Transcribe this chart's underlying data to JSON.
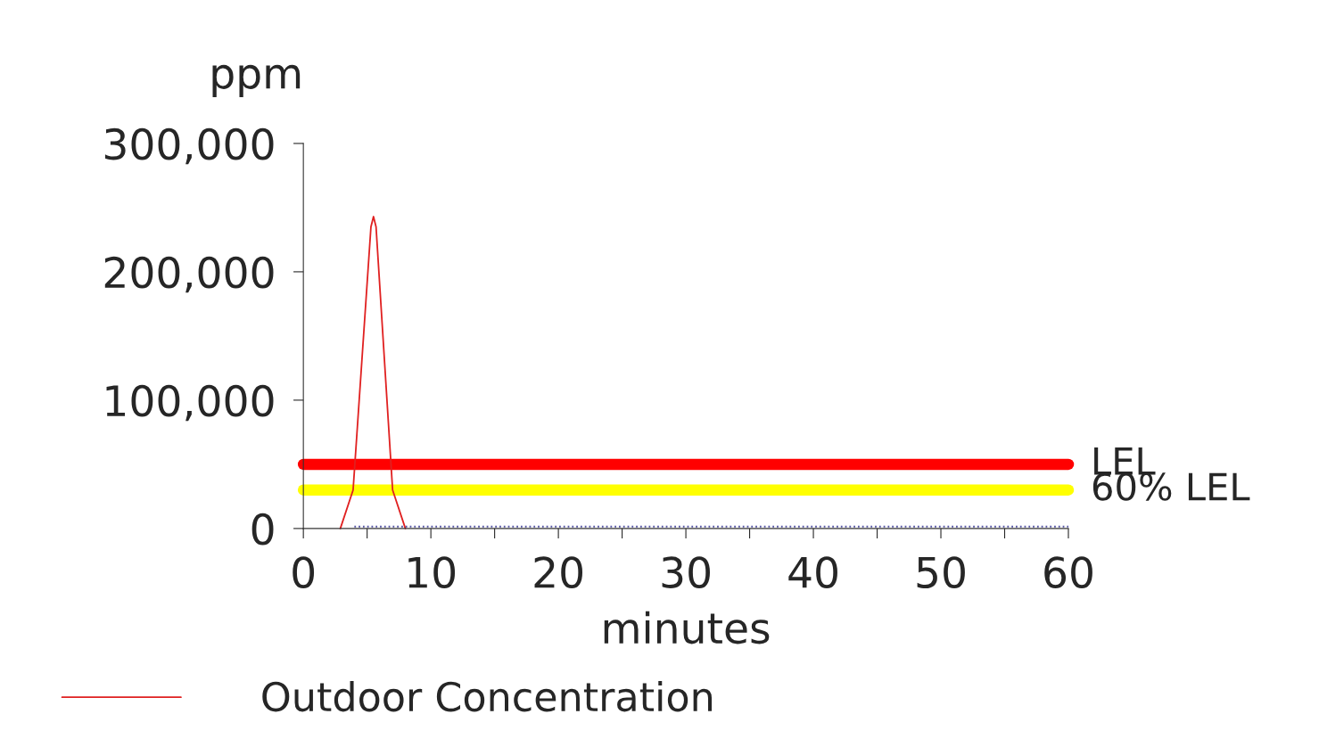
{
  "chart_data": {
    "type": "line",
    "xlabel": "minutes",
    "ylabel": "ppm",
    "series": [
      {
        "name": "Outdoor Concentration",
        "color": "#e02020",
        "x": [
          2.9,
          3.9,
          5.3,
          5.5,
          5.7,
          7.0,
          8.0
        ],
        "values": [
          0,
          30000,
          235000,
          243000,
          235000,
          30000,
          0
        ]
      },
      {
        "color": "#5050a0",
        "line_style": "dotted",
        "x": [
          4,
          60
        ],
        "values": [
          1500,
          1500
        ]
      }
    ],
    "ref_lines": [
      {
        "axis": "y",
        "value": 50000,
        "label": "LEL",
        "color": "#ff0000"
      },
      {
        "axis": "y",
        "value": 30000,
        "label": "60% LEL",
        "color": "#ffff00"
      }
    ],
    "xlim": [
      0,
      60
    ],
    "ylim": [
      0,
      300000
    ],
    "xticks": [
      0,
      {
        "value": 5,
        "label": null
      },
      10,
      {
        "value": 15,
        "label": null
      },
      20,
      {
        "value": 25,
        "label": null
      },
      30,
      {
        "value": 35,
        "label": null
      },
      40,
      {
        "value": 45,
        "label": null
      },
      50,
      {
        "value": 55,
        "label": null
      },
      60
    ],
    "yticks": [
      {
        "value": 0,
        "label": "0"
      },
      {
        "value": 100000,
        "label": "100,000"
      },
      {
        "value": 200000,
        "label": "200,000"
      },
      {
        "value": 300000,
        "label": "300,000"
      }
    ],
    "grid": false,
    "legend": "bottom left"
  }
}
